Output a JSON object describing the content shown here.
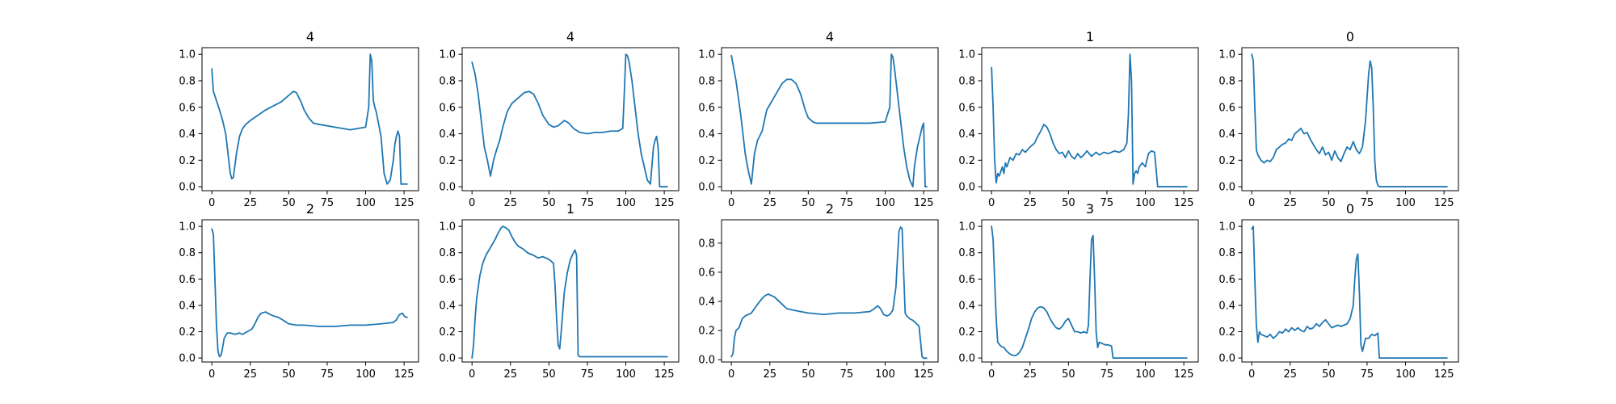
{
  "figure": {
    "background": "#ffffff",
    "line_color": "#1f77b4",
    "axis_color": "#000000"
  },
  "chart_data": [
    {
      "type": "line",
      "title": "4",
      "xlabel": "",
      "ylabel": "",
      "xlim": [
        -6.4,
        134.4
      ],
      "ylim": [
        -0.03,
        1.05
      ],
      "xticks": [
        0,
        25,
        50,
        75,
        100,
        125
      ],
      "yticks": [
        0.0,
        0.2,
        0.4,
        0.6,
        0.8,
        1.0
      ],
      "xticklabels": [
        "0",
        "25",
        "50",
        "75",
        "100",
        "125"
      ],
      "yticklabels": [
        "0.0",
        "0.2",
        "0.4",
        "0.6",
        "0.8",
        "1.0"
      ],
      "grid": false,
      "x": [
        0,
        1,
        3,
        5,
        7,
        9,
        11,
        12,
        13,
        14,
        16,
        18,
        20,
        22,
        25,
        30,
        35,
        40,
        45,
        50,
        53,
        55,
        58,
        60,
        63,
        66,
        70,
        75,
        80,
        85,
        90,
        95,
        100,
        102,
        103,
        104,
        105,
        106,
        107,
        108,
        110,
        112,
        114,
        116,
        118,
        119,
        120,
        121,
        122,
        123,
        124,
        125,
        126,
        127
      ],
      "y": [
        0.89,
        0.72,
        0.65,
        0.58,
        0.5,
        0.4,
        0.2,
        0.1,
        0.06,
        0.07,
        0.25,
        0.38,
        0.44,
        0.47,
        0.5,
        0.54,
        0.58,
        0.61,
        0.64,
        0.69,
        0.72,
        0.71,
        0.64,
        0.58,
        0.52,
        0.48,
        0.47,
        0.46,
        0.45,
        0.44,
        0.43,
        0.44,
        0.45,
        0.6,
        1.0,
        0.95,
        0.65,
        0.6,
        0.56,
        0.5,
        0.38,
        0.1,
        0.02,
        0.05,
        0.2,
        0.32,
        0.38,
        0.42,
        0.38,
        0.02,
        0.02,
        0.02,
        0.02,
        0.02
      ]
    },
    {
      "type": "line",
      "title": "4",
      "xlabel": "",
      "ylabel": "",
      "xlim": [
        -6.4,
        134.4
      ],
      "ylim": [
        -0.03,
        1.05
      ],
      "xticks": [
        0,
        25,
        50,
        75,
        100,
        125
      ],
      "yticks": [
        0.0,
        0.2,
        0.4,
        0.6,
        0.8,
        1.0
      ],
      "xticklabels": [
        "0",
        "25",
        "50",
        "75",
        "100",
        "125"
      ],
      "yticklabels": [
        "0.0",
        "0.2",
        "0.4",
        "0.6",
        "0.8",
        "1.0"
      ],
      "grid": false,
      "x": [
        0,
        2,
        4,
        6,
        8,
        10,
        12,
        14,
        16,
        18,
        20,
        23,
        26,
        30,
        34,
        37,
        40,
        43,
        46,
        50,
        53,
        56,
        60,
        63,
        66,
        70,
        75,
        80,
        85,
        90,
        95,
        98,
        99,
        100,
        101,
        102,
        104,
        106,
        108,
        110,
        112,
        114,
        116,
        118,
        119,
        120,
        121,
        122,
        124,
        126,
        127
      ],
      "y": [
        0.94,
        0.85,
        0.7,
        0.5,
        0.3,
        0.2,
        0.08,
        0.2,
        0.28,
        0.35,
        0.45,
        0.57,
        0.63,
        0.67,
        0.71,
        0.72,
        0.7,
        0.63,
        0.54,
        0.47,
        0.45,
        0.46,
        0.5,
        0.48,
        0.44,
        0.41,
        0.4,
        0.41,
        0.41,
        0.42,
        0.42,
        0.44,
        0.7,
        1.0,
        0.99,
        0.95,
        0.8,
        0.6,
        0.4,
        0.25,
        0.15,
        0.05,
        0.02,
        0.3,
        0.35,
        0.38,
        0.3,
        0.0,
        0.0,
        0.0,
        0.0
      ]
    },
    {
      "type": "line",
      "title": "4",
      "xlabel": "",
      "ylabel": "",
      "xlim": [
        -6.4,
        134.4
      ],
      "ylim": [
        -0.03,
        1.05
      ],
      "xticks": [
        0,
        25,
        50,
        75,
        100,
        125
      ],
      "yticks": [
        0.0,
        0.2,
        0.4,
        0.6,
        0.8,
        1.0
      ],
      "xticklabels": [
        "0",
        "25",
        "50",
        "75",
        "100",
        "125"
      ],
      "yticklabels": [
        "0.0",
        "0.2",
        "0.4",
        "0.6",
        "0.8",
        "1.0"
      ],
      "grid": false,
      "x": [
        0,
        3,
        6,
        9,
        11,
        13,
        15,
        17,
        20,
        23,
        26,
        30,
        33,
        36,
        39,
        42,
        45,
        48,
        50,
        53,
        55,
        60,
        70,
        80,
        90,
        100,
        103,
        104,
        105,
        106,
        108,
        110,
        112,
        114,
        116,
        118,
        119,
        121,
        123,
        124,
        125,
        126,
        127
      ],
      "y": [
        0.99,
        0.8,
        0.55,
        0.25,
        0.12,
        0.02,
        0.25,
        0.35,
        0.42,
        0.58,
        0.64,
        0.72,
        0.78,
        0.81,
        0.81,
        0.78,
        0.7,
        0.58,
        0.52,
        0.49,
        0.48,
        0.48,
        0.48,
        0.48,
        0.48,
        0.49,
        0.6,
        1.0,
        0.98,
        0.9,
        0.7,
        0.5,
        0.3,
        0.15,
        0.05,
        0.0,
        0.15,
        0.3,
        0.4,
        0.45,
        0.48,
        0.0,
        0.0
      ]
    },
    {
      "type": "line",
      "title": "1",
      "xlabel": "",
      "ylabel": "",
      "xlim": [
        -6.4,
        134.4
      ],
      "ylim": [
        -0.03,
        1.05
      ],
      "xticks": [
        0,
        25,
        50,
        75,
        100,
        125
      ],
      "yticks": [
        0.0,
        0.2,
        0.4,
        0.6,
        0.8,
        1.0
      ],
      "xticklabels": [
        "0",
        "25",
        "50",
        "75",
        "100",
        "125"
      ],
      "yticklabels": [
        "0.0",
        "0.2",
        "0.4",
        "0.6",
        "0.8",
        "1.0"
      ],
      "grid": false,
      "x": [
        0,
        1,
        2,
        3,
        4,
        5,
        7,
        8,
        9,
        10,
        12,
        14,
        16,
        18,
        20,
        22,
        25,
        28,
        30,
        32,
        34,
        36,
        38,
        40,
        42,
        44,
        46,
        48,
        50,
        52,
        54,
        56,
        58,
        60,
        62,
        65,
        68,
        70,
        73,
        76,
        80,
        83,
        86,
        88,
        89,
        90,
        91,
        92,
        93,
        94,
        95,
        96,
        98,
        100,
        102,
        104,
        106,
        108,
        110,
        127
      ],
      "y": [
        0.9,
        0.6,
        0.2,
        0.03,
        0.1,
        0.08,
        0.15,
        0.1,
        0.18,
        0.15,
        0.22,
        0.2,
        0.25,
        0.24,
        0.28,
        0.26,
        0.3,
        0.33,
        0.38,
        0.42,
        0.47,
        0.45,
        0.4,
        0.33,
        0.28,
        0.25,
        0.26,
        0.22,
        0.27,
        0.23,
        0.21,
        0.25,
        0.22,
        0.24,
        0.27,
        0.23,
        0.26,
        0.24,
        0.26,
        0.25,
        0.27,
        0.26,
        0.28,
        0.33,
        0.55,
        1.0,
        0.8,
        0.02,
        0.1,
        0.12,
        0.1,
        0.15,
        0.18,
        0.15,
        0.25,
        0.27,
        0.26,
        0.0,
        0.0,
        0.0
      ]
    },
    {
      "type": "line",
      "title": "0",
      "xlabel": "",
      "ylabel": "",
      "xlim": [
        -6.4,
        134.4
      ],
      "ylim": [
        -0.03,
        1.05
      ],
      "xticks": [
        0,
        25,
        50,
        75,
        100,
        125
      ],
      "yticks": [
        0.0,
        0.2,
        0.4,
        0.6,
        0.8,
        1.0
      ],
      "xticklabels": [
        "0",
        "25",
        "50",
        "75",
        "100",
        "125"
      ],
      "yticklabels": [
        "0.0",
        "0.2",
        "0.4",
        "0.6",
        "0.8",
        "1.0"
      ],
      "grid": false,
      "x": [
        0,
        1,
        2,
        3,
        4,
        6,
        8,
        10,
        12,
        14,
        16,
        18,
        20,
        22,
        24,
        26,
        28,
        30,
        32,
        34,
        36,
        38,
        40,
        42,
        44,
        46,
        48,
        50,
        52,
        54,
        56,
        58,
        60,
        62,
        64,
        66,
        68,
        70,
        72,
        74,
        76,
        77,
        78,
        79,
        80,
        81,
        82,
        83,
        84,
        86,
        90,
        100,
        110,
        127
      ],
      "y": [
        1.0,
        0.95,
        0.6,
        0.28,
        0.24,
        0.2,
        0.18,
        0.2,
        0.19,
        0.22,
        0.28,
        0.3,
        0.32,
        0.33,
        0.36,
        0.35,
        0.4,
        0.42,
        0.44,
        0.4,
        0.41,
        0.36,
        0.32,
        0.28,
        0.25,
        0.3,
        0.24,
        0.26,
        0.2,
        0.27,
        0.22,
        0.19,
        0.25,
        0.3,
        0.28,
        0.34,
        0.28,
        0.25,
        0.3,
        0.5,
        0.85,
        0.95,
        0.9,
        0.6,
        0.2,
        0.05,
        0.01,
        0.0,
        0.0,
        0.0,
        0.0,
        0.0,
        0.0,
        0.0
      ]
    },
    {
      "type": "line",
      "title": "2",
      "xlabel": "",
      "ylabel": "",
      "xlim": [
        -6.4,
        134.4
      ],
      "ylim": [
        -0.03,
        1.05
      ],
      "xticks": [
        0,
        25,
        50,
        75,
        100,
        125
      ],
      "yticks": [
        0.0,
        0.2,
        0.4,
        0.6,
        0.8,
        1.0
      ],
      "xticklabels": [
        "0",
        "25",
        "50",
        "75",
        "100",
        "125"
      ],
      "yticklabels": [
        "0.0",
        "0.2",
        "0.4",
        "0.6",
        "0.8",
        "1.0"
      ],
      "grid": false,
      "x": [
        0,
        1,
        2,
        3,
        4,
        5,
        6,
        7,
        8,
        10,
        12,
        15,
        18,
        20,
        23,
        26,
        28,
        30,
        32,
        35,
        38,
        40,
        43,
        46,
        50,
        55,
        60,
        70,
        80,
        90,
        100,
        110,
        118,
        120,
        122,
        124,
        125,
        126,
        127
      ],
      "y": [
        0.98,
        0.94,
        0.6,
        0.25,
        0.05,
        0.01,
        0.02,
        0.08,
        0.15,
        0.19,
        0.19,
        0.18,
        0.19,
        0.18,
        0.2,
        0.22,
        0.26,
        0.31,
        0.34,
        0.35,
        0.33,
        0.32,
        0.31,
        0.29,
        0.26,
        0.25,
        0.25,
        0.24,
        0.24,
        0.25,
        0.25,
        0.26,
        0.27,
        0.29,
        0.33,
        0.34,
        0.32,
        0.31,
        0.31
      ]
    },
    {
      "type": "line",
      "title": "1",
      "xlabel": "",
      "ylabel": "",
      "xlim": [
        -6.4,
        134.4
      ],
      "ylim": [
        -0.03,
        1.05
      ],
      "xticks": [
        0,
        25,
        50,
        75,
        100,
        125
      ],
      "yticks": [
        0.0,
        0.2,
        0.4,
        0.6,
        0.8,
        1.0
      ],
      "xticklabels": [
        "0",
        "25",
        "50",
        "75",
        "100",
        "125"
      ],
      "yticklabels": [
        "0.0",
        "0.2",
        "0.4",
        "0.6",
        "0.8",
        "1.0"
      ],
      "grid": false,
      "x": [
        0,
        1,
        2,
        3,
        5,
        7,
        9,
        11,
        13,
        15,
        17,
        19,
        20,
        22,
        24,
        26,
        28,
        30,
        33,
        36,
        40,
        43,
        46,
        50,
        53,
        54,
        55,
        56,
        57,
        58,
        60,
        62,
        64,
        66,
        67,
        68,
        69,
        70,
        80,
        100,
        127
      ],
      "y": [
        0.0,
        0.1,
        0.3,
        0.45,
        0.62,
        0.72,
        0.78,
        0.82,
        0.86,
        0.9,
        0.95,
        0.99,
        1.0,
        0.99,
        0.97,
        0.92,
        0.88,
        0.85,
        0.83,
        0.8,
        0.78,
        0.76,
        0.77,
        0.75,
        0.72,
        0.55,
        0.3,
        0.1,
        0.07,
        0.2,
        0.5,
        0.65,
        0.75,
        0.8,
        0.82,
        0.78,
        0.02,
        0.01,
        0.01,
        0.01,
        0.01
      ]
    },
    {
      "type": "line",
      "title": "2",
      "xlabel": "",
      "ylabel": "",
      "xlim": [
        -6.4,
        134.4
      ],
      "ylim": [
        -0.016,
        0.96
      ],
      "xticks": [
        0,
        25,
        50,
        75,
        100,
        125
      ],
      "yticks": [
        0.0,
        0.2,
        0.4,
        0.6,
        0.8
      ],
      "xticklabels": [
        "0",
        "25",
        "50",
        "75",
        "100",
        "125"
      ],
      "yticklabels": [
        "0.0",
        "0.2",
        "0.4",
        "0.6",
        "0.8"
      ],
      "grid": false,
      "x": [
        0,
        1,
        2,
        3,
        5,
        7,
        9,
        11,
        13,
        15,
        17,
        20,
        22,
        24,
        26,
        28,
        30,
        33,
        36,
        40,
        45,
        50,
        60,
        70,
        80,
        90,
        93,
        95,
        97,
        99,
        101,
        103,
        105,
        107,
        108,
        109,
        110,
        111,
        112,
        113,
        114,
        116,
        118,
        120,
        122,
        124,
        125,
        126,
        127
      ],
      "y": [
        0.02,
        0.04,
        0.15,
        0.2,
        0.22,
        0.28,
        0.3,
        0.31,
        0.32,
        0.35,
        0.38,
        0.42,
        0.44,
        0.45,
        0.44,
        0.43,
        0.41,
        0.38,
        0.35,
        0.34,
        0.33,
        0.32,
        0.31,
        0.32,
        0.32,
        0.33,
        0.35,
        0.37,
        0.35,
        0.31,
        0.3,
        0.31,
        0.34,
        0.5,
        0.7,
        0.88,
        0.91,
        0.9,
        0.6,
        0.32,
        0.3,
        0.28,
        0.27,
        0.25,
        0.23,
        0.02,
        0.01,
        0.01,
        0.01
      ]
    },
    {
      "type": "line",
      "title": "3",
      "xlabel": "",
      "ylabel": "",
      "xlim": [
        -6.4,
        134.4
      ],
      "ylim": [
        -0.03,
        1.05
      ],
      "xticks": [
        0,
        25,
        50,
        75,
        100,
        125
      ],
      "yticks": [
        0.0,
        0.2,
        0.4,
        0.6,
        0.8,
        1.0
      ],
      "xticklabels": [
        "0",
        "25",
        "50",
        "75",
        "100",
        "125"
      ],
      "yticklabels": [
        "0.0",
        "0.2",
        "0.4",
        "0.6",
        "0.8",
        "1.0"
      ],
      "grid": false,
      "x": [
        0,
        1,
        2,
        3,
        4,
        6,
        8,
        10,
        12,
        14,
        16,
        18,
        20,
        22,
        24,
        26,
        28,
        30,
        32,
        34,
        36,
        38,
        40,
        42,
        44,
        46,
        48,
        50,
        52,
        54,
        56,
        58,
        60,
        62,
        63,
        64,
        65,
        66,
        67,
        68,
        69,
        70,
        72,
        74,
        76,
        78,
        79,
        80,
        90,
        100,
        127
      ],
      "y": [
        1.0,
        0.9,
        0.6,
        0.3,
        0.12,
        0.09,
        0.08,
        0.05,
        0.03,
        0.02,
        0.02,
        0.04,
        0.08,
        0.15,
        0.22,
        0.3,
        0.35,
        0.38,
        0.39,
        0.38,
        0.35,
        0.3,
        0.26,
        0.23,
        0.22,
        0.24,
        0.28,
        0.3,
        0.25,
        0.2,
        0.2,
        0.19,
        0.2,
        0.19,
        0.25,
        0.6,
        0.9,
        0.93,
        0.6,
        0.2,
        0.08,
        0.12,
        0.11,
        0.1,
        0.1,
        0.09,
        0.0,
        0.0,
        0.0,
        0.0,
        0.0
      ]
    },
    {
      "type": "line",
      "title": "0",
      "xlabel": "",
      "ylabel": "",
      "xlim": [
        -6.4,
        134.4
      ],
      "ylim": [
        -0.03,
        1.05
      ],
      "xticks": [
        0,
        25,
        50,
        75,
        100,
        125
      ],
      "yticks": [
        0.0,
        0.2,
        0.4,
        0.6,
        0.8,
        1.0
      ],
      "xticklabels": [
        "0",
        "25",
        "50",
        "75",
        "100",
        "125"
      ],
      "yticklabels": [
        "0.0",
        "0.2",
        "0.4",
        "0.6",
        "0.8",
        "1.0"
      ],
      "grid": false,
      "x": [
        0,
        1,
        2,
        3,
        4,
        5,
        6,
        8,
        10,
        12,
        14,
        16,
        18,
        20,
        22,
        24,
        26,
        28,
        30,
        32,
        34,
        36,
        38,
        40,
        42,
        44,
        46,
        48,
        50,
        52,
        54,
        56,
        58,
        60,
        62,
        64,
        66,
        67,
        68,
        69,
        70,
        71,
        72,
        74,
        76,
        78,
        80,
        82,
        83,
        84,
        90,
        100,
        127
      ],
      "y": [
        0.98,
        1.0,
        0.6,
        0.25,
        0.12,
        0.2,
        0.18,
        0.17,
        0.16,
        0.18,
        0.15,
        0.17,
        0.2,
        0.19,
        0.22,
        0.2,
        0.23,
        0.21,
        0.23,
        0.21,
        0.2,
        0.24,
        0.22,
        0.23,
        0.26,
        0.24,
        0.27,
        0.29,
        0.26,
        0.23,
        0.24,
        0.25,
        0.24,
        0.25,
        0.26,
        0.3,
        0.4,
        0.6,
        0.75,
        0.79,
        0.5,
        0.1,
        0.05,
        0.15,
        0.15,
        0.18,
        0.17,
        0.19,
        0.0,
        0.0,
        0.0,
        0.0,
        0.0
      ]
    }
  ]
}
